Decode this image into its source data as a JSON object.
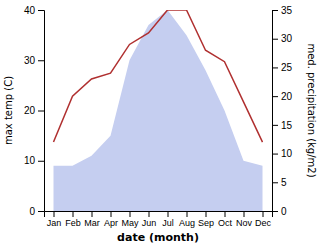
{
  "chart_data": {
    "type": "line",
    "categories": [
      "Jan",
      "Feb",
      "Mar",
      "Apr",
      "May",
      "Jun",
      "Jul",
      "Aug",
      "Sep",
      "Oct",
      "Nov",
      "Dec"
    ],
    "xlabel": "date (month)",
    "ylabel": "max temp (C)",
    "y2label": "med. precipitation (kg/m2)",
    "ylim": [
      0,
      40
    ],
    "yticks": [
      0,
      10,
      20,
      30,
      40
    ],
    "y2lim": [
      0,
      35
    ],
    "y2ticks": [
      0,
      5,
      10,
      15,
      20,
      25,
      30,
      35
    ],
    "grid": false,
    "series": [
      {
        "type": "area",
        "color": "#c5cef0",
        "values": [
          9,
          9,
          11,
          15,
          30,
          37,
          40,
          35,
          28,
          20,
          10,
          9
        ]
      },
      {
        "type": "line",
        "color": "#b03030",
        "axis": "y2",
        "values": [
          12,
          20,
          23,
          24,
          29,
          31,
          35,
          35,
          28,
          26,
          19,
          12
        ]
      }
    ]
  }
}
